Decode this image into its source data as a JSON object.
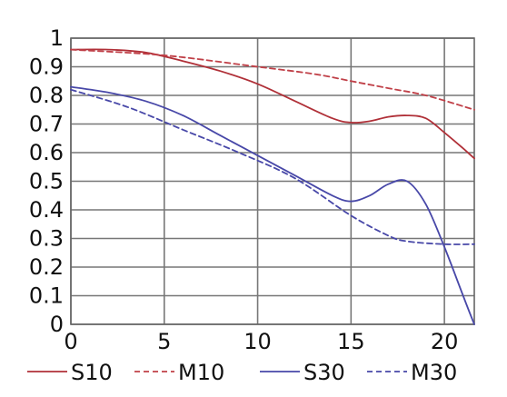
{
  "chart_data": {
    "type": "line",
    "title": "",
    "xlabel": "",
    "ylabel": "",
    "xlim": [
      0,
      21.6
    ],
    "ylim": [
      0,
      1
    ],
    "grid": true,
    "legend_position": "bottom",
    "x_ticks": [
      0,
      5,
      10,
      15,
      20
    ],
    "x_tick_labels": [
      "0",
      "5",
      "10",
      "15",
      "20"
    ],
    "y_ticks": [
      0,
      0.1,
      0.2,
      0.3,
      0.4,
      0.5,
      0.6,
      0.7,
      0.8,
      0.9,
      1
    ],
    "y_tick_labels": [
      "0",
      "0.1",
      "0.2",
      "0.3",
      "0.4",
      "0.5",
      "0.6",
      "0.7",
      "0.8",
      "0.9",
      "1"
    ],
    "series": [
      {
        "name": "S10",
        "color": "#b03038",
        "dash": "solid",
        "points": [
          [
            0,
            0.96
          ],
          [
            2,
            0.96
          ],
          [
            4,
            0.95
          ],
          [
            6,
            0.92
          ],
          [
            8,
            0.885
          ],
          [
            10,
            0.84
          ],
          [
            12,
            0.78
          ],
          [
            14,
            0.72
          ],
          [
            15,
            0.705
          ],
          [
            16,
            0.71
          ],
          [
            17,
            0.725
          ],
          [
            18,
            0.73
          ],
          [
            19,
            0.72
          ],
          [
            20,
            0.67
          ],
          [
            21,
            0.615
          ],
          [
            21.6,
            0.58
          ]
        ]
      },
      {
        "name": "M10",
        "color": "#c04048",
        "dash": "dashed",
        "points": [
          [
            0,
            0.96
          ],
          [
            5,
            0.94
          ],
          [
            10,
            0.9
          ],
          [
            13,
            0.875
          ],
          [
            15,
            0.85
          ],
          [
            17,
            0.825
          ],
          [
            19,
            0.8
          ],
          [
            21.6,
            0.75
          ]
        ]
      },
      {
        "name": "S30",
        "color": "#4848a8",
        "dash": "solid",
        "points": [
          [
            0,
            0.83
          ],
          [
            2,
            0.81
          ],
          [
            4,
            0.78
          ],
          [
            6,
            0.73
          ],
          [
            8,
            0.66
          ],
          [
            10,
            0.59
          ],
          [
            12,
            0.52
          ],
          [
            14,
            0.45
          ],
          [
            15,
            0.43
          ],
          [
            16,
            0.45
          ],
          [
            17,
            0.49
          ],
          [
            18,
            0.5
          ],
          [
            19,
            0.42
          ],
          [
            20,
            0.27
          ],
          [
            21,
            0.1
          ],
          [
            21.6,
            0
          ]
        ]
      },
      {
        "name": "M30",
        "color": "#4848a8",
        "dash": "dashed",
        "points": [
          [
            0,
            0.82
          ],
          [
            3,
            0.76
          ],
          [
            6,
            0.68
          ],
          [
            9,
            0.6
          ],
          [
            12,
            0.51
          ],
          [
            15,
            0.38
          ],
          [
            17,
            0.31
          ],
          [
            18,
            0.29
          ],
          [
            20,
            0.28
          ],
          [
            21.6,
            0.28
          ]
        ]
      }
    ]
  }
}
